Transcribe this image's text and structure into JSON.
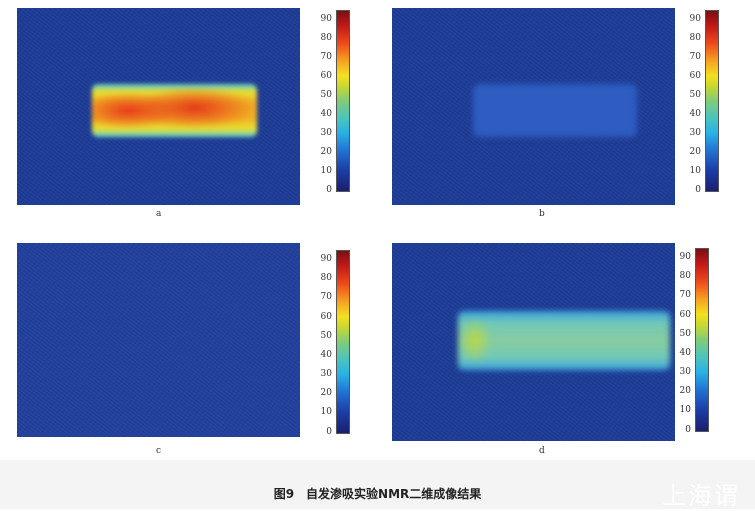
{
  "panels": [
    {
      "label": "a",
      "colorbar": {
        "min": 0,
        "max": 95,
        "ticks": [
          "0",
          "10",
          "20",
          "30",
          "40",
          "50",
          "60",
          "70",
          "80",
          "90"
        ]
      }
    },
    {
      "label": "b",
      "colorbar": {
        "min": 0,
        "max": 95,
        "ticks": [
          "0",
          "10",
          "20",
          "30",
          "40",
          "50",
          "60",
          "70",
          "80",
          "90"
        ]
      }
    },
    {
      "label": "c",
      "colorbar": {
        "min": 0,
        "max": 95,
        "ticks": [
          "0",
          "10",
          "20",
          "30",
          "40",
          "50",
          "60",
          "70",
          "80",
          "90"
        ]
      }
    },
    {
      "label": "d",
      "colorbar": {
        "min": 0,
        "max": 95,
        "ticks": [
          "0",
          "10",
          "20",
          "30",
          "40",
          "50",
          "60",
          "70",
          "80",
          "90"
        ]
      }
    }
  ],
  "colormap": "jet",
  "caption": "图9　自发渗吸实验NMR二维成像结果",
  "watermark": "上海谓"
}
